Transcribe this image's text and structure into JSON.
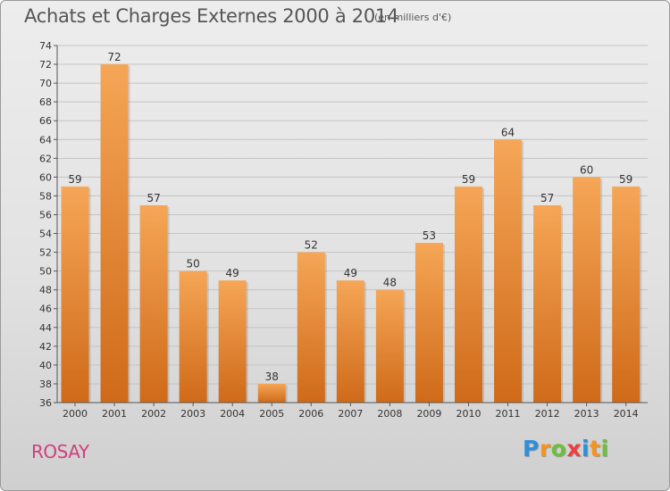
{
  "title": "Achats et Charges Externes 2000 à 2014",
  "subtitle": "(en milliers d'€)",
  "place": "ROSAY",
  "logo": {
    "letters": [
      "P",
      "r",
      "o",
      "x",
      "i",
      "t",
      "i"
    ],
    "colors": [
      "#2f8fd8",
      "#f7941d",
      "#6cbf3b",
      "#ef3d3d",
      "#2f8fd8",
      "#f7941d",
      "#6cbf3b"
    ]
  },
  "colors": {
    "bar_top": "#f5a656",
    "bar_bottom": "#cf6a19",
    "place": "#d0407c"
  },
  "chart_data": {
    "type": "bar",
    "categories": [
      "2000",
      "2001",
      "2002",
      "2003",
      "2004",
      "2005",
      "2006",
      "2007",
      "2008",
      "2009",
      "2010",
      "2011",
      "2012",
      "2013",
      "2014"
    ],
    "values": [
      59,
      72,
      57,
      50,
      49,
      38,
      52,
      49,
      48,
      53,
      59,
      64,
      57,
      60,
      59
    ],
    "ylim": [
      36,
      74
    ],
    "ytick_step": 2,
    "grid": true
  }
}
